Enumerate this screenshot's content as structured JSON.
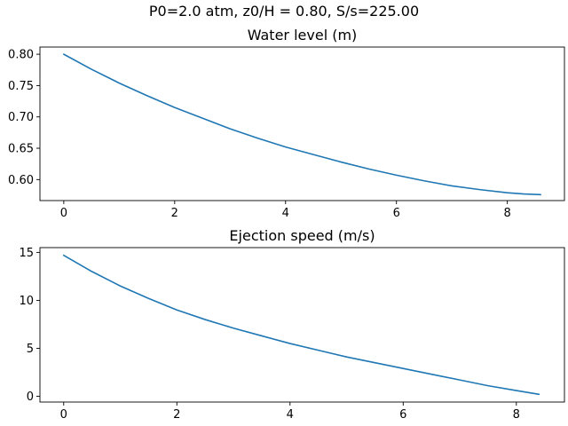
{
  "figure": {
    "suptitle": "P0=2.0 atm, z0/H = 0.80, S/s=225.00",
    "line_color": "#1f77b4"
  },
  "chart_data": [
    {
      "type": "line",
      "title": "Water level (m)",
      "xlabel": "",
      "ylabel": "",
      "xlim": [
        -0.43,
        9.03
      ],
      "ylim": [
        0.5665,
        0.8115
      ],
      "xticks": [
        0,
        2,
        4,
        6,
        8
      ],
      "xtick_labels": [
        "0",
        "2",
        "4",
        "6",
        "8"
      ],
      "yticks": [
        0.6,
        0.65,
        0.7,
        0.75,
        0.8
      ],
      "ytick_labels": [
        "0.60",
        "0.65",
        "0.70",
        "0.75",
        "0.80"
      ],
      "grid": false,
      "series": [
        {
          "x": [
            0,
            0.5,
            1,
            1.5,
            2,
            2.5,
            3,
            3.5,
            4,
            4.5,
            5,
            5.5,
            6,
            6.5,
            7,
            7.5,
            8,
            8.3,
            8.6
          ],
          "y": [
            0.8,
            0.776,
            0.754,
            0.734,
            0.715,
            0.698,
            0.681,
            0.666,
            0.652,
            0.64,
            0.628,
            0.617,
            0.607,
            0.598,
            0.59,
            0.584,
            0.579,
            0.577,
            0.576
          ]
        }
      ]
    },
    {
      "type": "line",
      "title": "Ejection speed (m/s)",
      "xlabel": "",
      "ylabel": "",
      "xlim": [
        -0.42,
        8.85
      ],
      "ylim": [
        -0.6,
        15.5
      ],
      "xticks": [
        0,
        2,
        4,
        6,
        8
      ],
      "xtick_labels": [
        "0",
        "2",
        "4",
        "6",
        "8"
      ],
      "yticks": [
        0,
        5,
        10,
        15
      ],
      "ytick_labels": [
        "0",
        "5",
        "10",
        "15"
      ],
      "grid": false,
      "series": [
        {
          "x": [
            0,
            0.5,
            1,
            1.5,
            2,
            2.5,
            3,
            3.5,
            4,
            4.5,
            5,
            5.5,
            6,
            6.5,
            7,
            7.5,
            8,
            8.4
          ],
          "y": [
            14.7,
            13.0,
            11.5,
            10.2,
            9.0,
            8.0,
            7.1,
            6.3,
            5.5,
            4.8,
            4.1,
            3.5,
            2.9,
            2.3,
            1.7,
            1.1,
            0.6,
            0.2
          ]
        }
      ]
    }
  ]
}
